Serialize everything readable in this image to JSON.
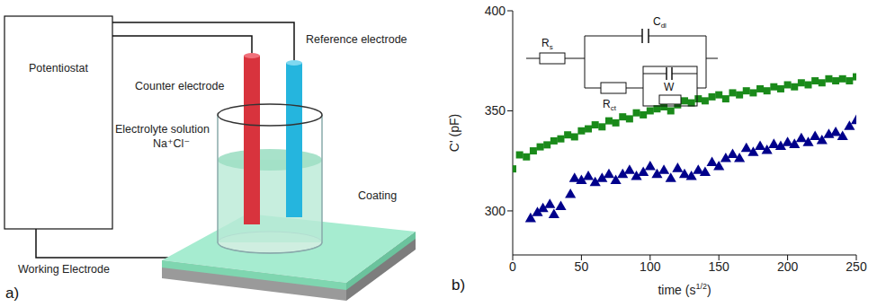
{
  "diagram": {
    "panel_label": "a)",
    "nodes": {
      "potentiostat": "Potentiostat",
      "counter": "Counter electrode",
      "reference": "Reference electrode",
      "electrolyte": "Electrolyte solution",
      "ions": "Na⁺Cl⁻",
      "coating": "Coating",
      "working": "Working Electrode"
    }
  },
  "chart_data": {
    "type": "scatter",
    "panel_label": "b)",
    "x_label": {
      "text": "time (s",
      "sup": "1/2",
      "after": ")"
    },
    "y_label": "C' (pF)",
    "xlim": [
      0,
      250
    ],
    "xticks": [
      0,
      50,
      100,
      150,
      200,
      250
    ],
    "ylim": [
      278,
      400
    ],
    "yticks": [
      300,
      350,
      400
    ],
    "grid": false,
    "inset": {
      "labels": [
        {
          "text": "R",
          "sub": "s"
        },
        {
          "text": "C",
          "sub": "dl"
        },
        {
          "text": "R",
          "sub": "ct"
        },
        {
          "text": "W",
          "sub": ""
        }
      ]
    },
    "series": [
      {
        "color": "#1a8a1a",
        "marker": "square",
        "x": [
          0,
          5,
          10,
          15,
          20,
          25,
          30,
          35,
          40,
          45,
          50,
          55,
          60,
          65,
          70,
          75,
          80,
          85,
          90,
          95,
          100,
          105,
          110,
          115,
          120,
          125,
          130,
          135,
          140,
          145,
          150,
          155,
          160,
          165,
          170,
          175,
          180,
          185,
          190,
          195,
          200,
          205,
          210,
          215,
          220,
          225,
          230,
          235,
          240,
          245,
          250
        ],
        "values": [
          321,
          328,
          327,
          330,
          332,
          333,
          335,
          336,
          338,
          337,
          340,
          341,
          343,
          342,
          345,
          344,
          347,
          346,
          349,
          348,
          350,
          351,
          352,
          350,
          353,
          355,
          354,
          356,
          355,
          357,
          358,
          356,
          359,
          358,
          360,
          359,
          361,
          360,
          362,
          361,
          363,
          362,
          364,
          363,
          365,
          364,
          366,
          365,
          366,
          365,
          367
        ]
      },
      {
        "color": "#00008b",
        "marker": "triangle",
        "x": [
          13,
          18,
          22,
          27,
          30,
          35,
          42,
          45,
          50,
          55,
          60,
          65,
          70,
          75,
          80,
          85,
          90,
          95,
          100,
          105,
          110,
          115,
          120,
          125,
          130,
          135,
          140,
          145,
          150,
          155,
          160,
          165,
          170,
          175,
          180,
          185,
          190,
          195,
          200,
          205,
          210,
          215,
          220,
          225,
          230,
          235,
          240,
          245,
          250
        ],
        "values": [
          296,
          299,
          301,
          303,
          298,
          302,
          308,
          316,
          315,
          317,
          314,
          316,
          318,
          315,
          318,
          320,
          317,
          319,
          322,
          318,
          320,
          316,
          321,
          318,
          317,
          320,
          319,
          324,
          322,
          326,
          328,
          326,
          331,
          329,
          332,
          330,
          333,
          332,
          334,
          333,
          336,
          334,
          337,
          335,
          338,
          339,
          337,
          342,
          345
        ]
      }
    ]
  }
}
